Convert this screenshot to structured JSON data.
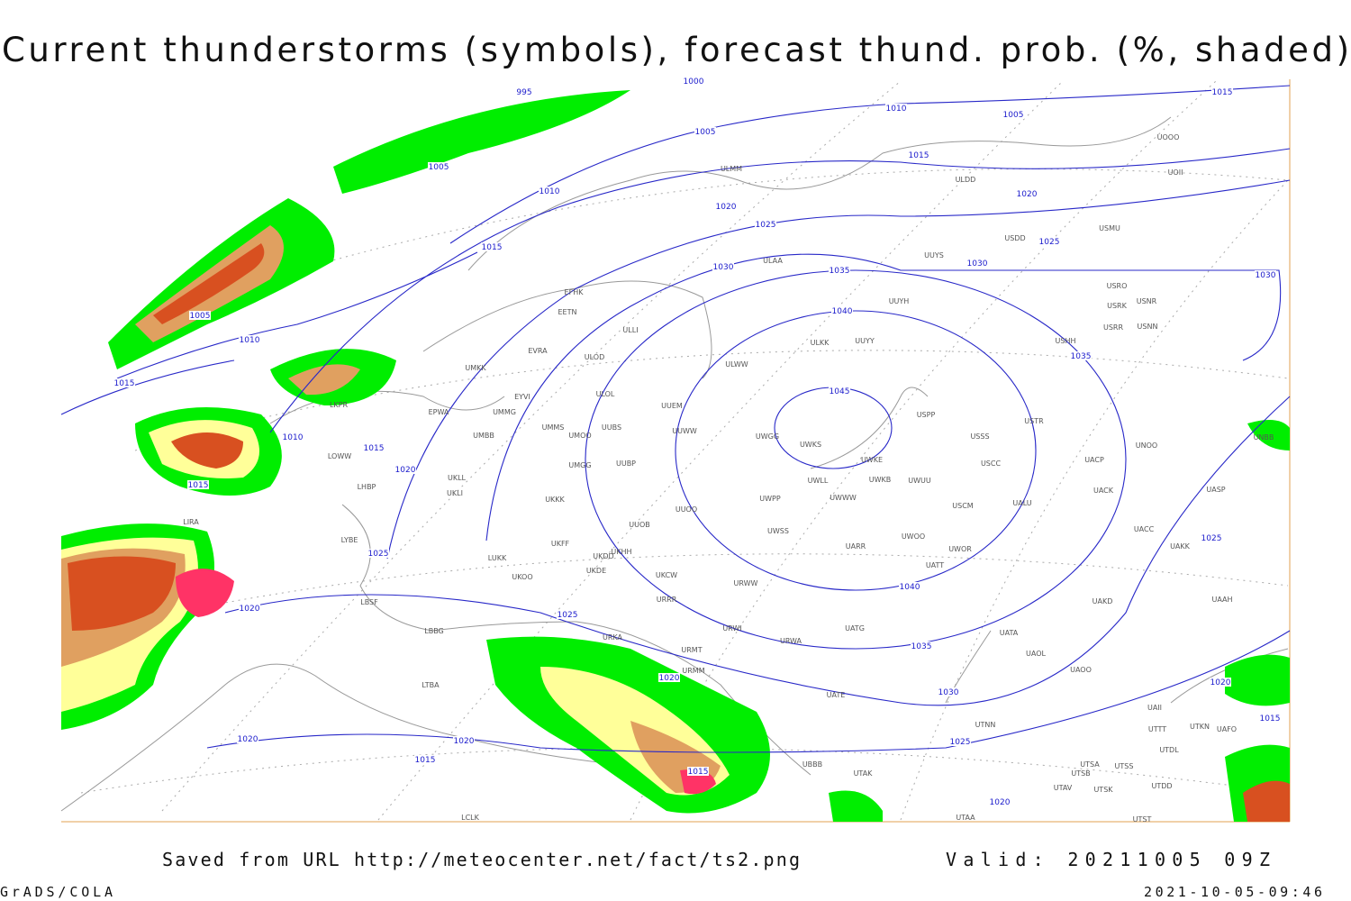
{
  "header": {
    "title": "Current thunderstorms (symbols), forecast thund. prob. (%, shaded)"
  },
  "isobar_labels": [
    995,
    1000,
    1005,
    1010,
    1005,
    1015,
    1005,
    1010,
    1015,
    1020,
    1020,
    1025,
    1025,
    1015,
    1030,
    1030,
    1035,
    1030,
    1040,
    1005,
    1010,
    1035,
    1015,
    1045,
    1010,
    1015,
    1020,
    1015,
    1025,
    1025,
    1040,
    1020,
    1025,
    1035,
    1020,
    1020,
    1030,
    1015,
    1025,
    1020,
    1020,
    1015,
    1015,
    1020
  ],
  "station_labels": [
    "UOOO",
    "UOII",
    "ULMM",
    "ULDD",
    "USMU",
    "USDD",
    "ULAA",
    "UUYS",
    "USRO",
    "USNR",
    "USRK",
    "UUYH",
    "USRR",
    "USNN",
    "ULKK",
    "UUYY",
    "USHH",
    "ULWW",
    "EFHK",
    "EETN",
    "ULLI",
    "EVRA",
    "ULOD",
    "UMKK",
    "EYVI",
    "ULOL",
    "UUEM",
    "UMMG",
    "EPWA",
    "USPP",
    "USTR",
    "UMMS",
    "UUBS",
    "UUWW",
    "UMOO",
    "UMBB",
    "UWGG",
    "USSS",
    "UNOO",
    "UNBB",
    "UWKS",
    "UWKE",
    "USCC",
    "UACP",
    "UKLL",
    "UMGG",
    "UUBP",
    "UWLL",
    "UWKB",
    "UWUU",
    "UACK",
    "UASP",
    "UKLI",
    "UWPP",
    "UWWW",
    "USCM",
    "UALU",
    "UKKK",
    "UUOO",
    "UUOB",
    "UWSS",
    "UACC",
    "UKHH",
    "UKDD",
    "UARR",
    "UWOO",
    "UWOR",
    "UAKK",
    "UKFF",
    "UKOO",
    "UKDE",
    "UKCW",
    "URWW",
    "UATT",
    "URRR",
    "UAKD",
    "UAAH",
    "URWI",
    "UATG",
    "UATA",
    "URKA",
    "URMT",
    "URWA",
    "UAOL",
    "URMM",
    "UAOO",
    "UATE",
    "UAII",
    "UTNN",
    "UTTT",
    "UTKN",
    "UAFO",
    "UTDL",
    "UTSA",
    "UTSS",
    "UTSB",
    "UTDD",
    "UTAV",
    "UTSK",
    "UBBB",
    "UTAK",
    "UTAA",
    "UTST",
    "LCLK",
    "LTBA",
    "LBSF",
    "LBBG",
    "LUKK",
    "LYBE",
    "LHBP",
    "LOWW",
    "LKPR",
    "LIRA"
  ],
  "footer": {
    "source": "Saved from URL http://meteocenter.net/fact/ts2.png",
    "valid": "Valid: 20211005 09Z",
    "software": "GrADS/COLA",
    "timestamp": "2021-10-05-09:46"
  }
}
